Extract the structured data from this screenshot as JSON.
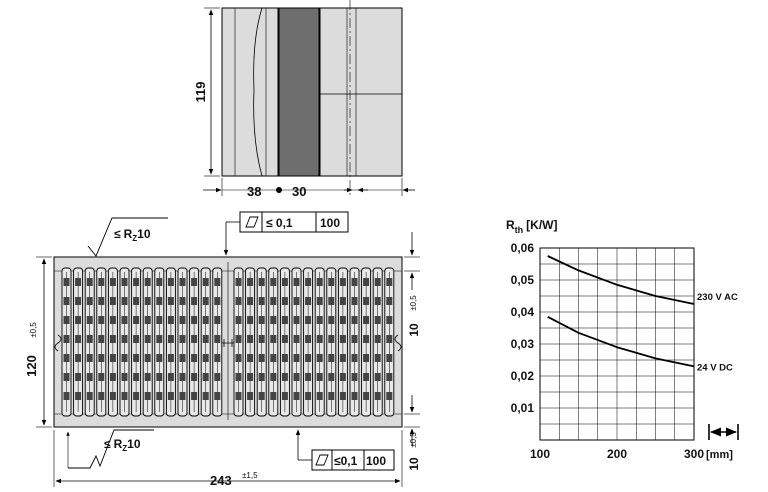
{
  "top_view": {
    "height_label": "119",
    "width_left_label": "38",
    "width_right_label": "30"
  },
  "front_view": {
    "width_label": "243",
    "width_tolerance": "±1,5",
    "height_label": "120",
    "height_tolerance": "±0,5",
    "right_dim_label": "10",
    "right_dim_tolerance": "±0,5",
    "bottom_dim_label": "10",
    "bottom_dim_tolerance": "±0,5",
    "roughness_top": {
      "symbol": "≤",
      "text": "R",
      "sub": "Z",
      "value": "10"
    },
    "roughness_bottom": {
      "symbol": "≤",
      "text": "R",
      "sub": "Z",
      "value": "10"
    },
    "flatness_top": {
      "value": "≤ 0,1",
      "length": "100"
    },
    "flatness_bottom": {
      "value": "≤0,1",
      "length": "100"
    }
  },
  "chart_data": {
    "type": "line",
    "ylabel_main": "R",
    "ylabel_sub": "th",
    "ylabel_unit": "[K/W]",
    "xlabel_unit": "[mm]",
    "xlim": [
      100,
      300
    ],
    "ylim": [
      0,
      0.06
    ],
    "x_ticks": [
      100,
      200,
      300
    ],
    "x_tick_labels": [
      "100",
      "200",
      "300"
    ],
    "y_ticks": [
      0.01,
      0.02,
      0.03,
      0.04,
      0.05,
      0.06
    ],
    "y_tick_labels": [
      "0,01",
      "0,02",
      "0,03",
      "0,04",
      "0,05",
      "0,06"
    ],
    "grid": true,
    "series": [
      {
        "name": "230 V AC",
        "x": [
          110,
          150,
          200,
          250,
          300
        ],
        "y": [
          0.0575,
          0.053,
          0.0485,
          0.045,
          0.0425
        ]
      },
      {
        "name": "24 V DC",
        "x": [
          110,
          150,
          200,
          250,
          300
        ],
        "y": [
          0.0385,
          0.0335,
          0.029,
          0.0255,
          0.023
        ]
      }
    ]
  }
}
